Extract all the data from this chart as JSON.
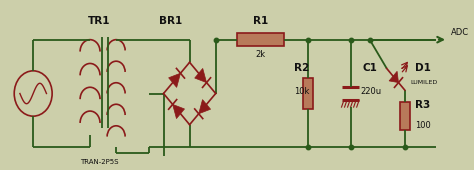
{
  "bg_color": "#cccfaa",
  "wire_color": "#2a5a1a",
  "component_color": "#8b1a1a",
  "component_fill": "#b87a5a",
  "text_color": "#111111",
  "fig_width": 4.74,
  "fig_height": 1.7,
  "dpi": 100,
  "xlim": [
    0,
    10.0
  ],
  "ylim": [
    0,
    3.0
  ]
}
